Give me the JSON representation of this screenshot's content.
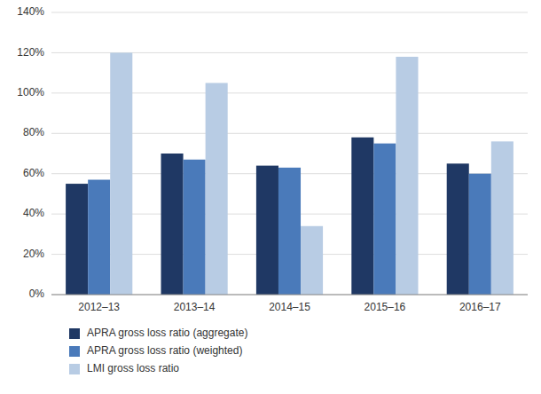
{
  "chart_data": {
    "type": "bar",
    "categories": [
      "2012–13",
      "2013–14",
      "2014–15",
      "2015–16",
      "2016–17"
    ],
    "series": [
      {
        "name": "APRA gross loss ratio (aggregate)",
        "color": "#1f3864",
        "values": [
          0.55,
          0.7,
          0.64,
          0.78,
          0.65
        ]
      },
      {
        "name": "APRA gross loss ratio (weighted)",
        "color": "#4a7aba",
        "values": [
          0.57,
          0.67,
          0.63,
          0.75,
          0.6
        ]
      },
      {
        "name": "LMI gross loss ratio",
        "color": "#b8cce4",
        "values": [
          1.2,
          1.05,
          0.34,
          1.18,
          0.76
        ]
      }
    ],
    "ylim": [
      0,
      1.4
    ],
    "yticks": [
      {
        "value": 0,
        "label": "0%"
      },
      {
        "value": 0.2,
        "label": "20%"
      },
      {
        "value": 0.4,
        "label": "40%"
      },
      {
        "value": 0.6,
        "label": "60%"
      },
      {
        "value": 0.8,
        "label": "80%"
      },
      {
        "value": 1.0,
        "label": "100%"
      },
      {
        "value": 1.2,
        "label": "120%"
      },
      {
        "value": 1.4,
        "label": "140%"
      }
    ],
    "grid": true,
    "legend": "bottom"
  }
}
